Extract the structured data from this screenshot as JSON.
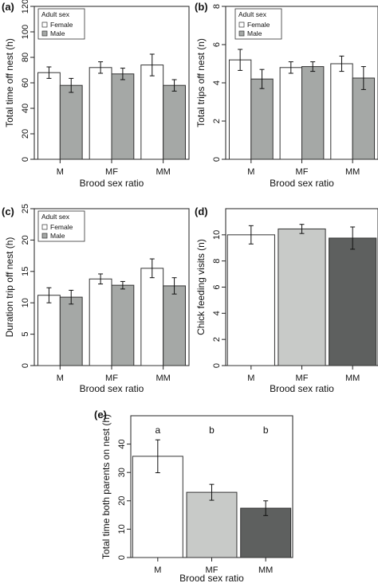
{
  "colors": {
    "female": "#ffffff",
    "male": "#a5a8a6",
    "mf": "#c8cac8",
    "mm": "#5e605f",
    "stroke": "#222222"
  },
  "chart_data": [
    {
      "type": "bar",
      "panel_label": "(a)",
      "categories": [
        "M",
        "MF",
        "MM"
      ],
      "series": [
        {
          "name": "Female",
          "values": [
            68,
            72,
            74
          ],
          "err": [
            4.5,
            4.5,
            8.5
          ]
        },
        {
          "name": "Male",
          "values": [
            58,
            67,
            58
          ],
          "err": [
            5.5,
            4.5,
            4.5
          ]
        }
      ],
      "ylabel": "Total time off nest (h)",
      "xlabel": "Brood sex ratio",
      "ylim": [
        0,
        120
      ],
      "yticks": [
        0,
        20,
        40,
        60,
        80,
        100,
        120
      ],
      "legend": {
        "title": "Adult sex",
        "entries": [
          "Female",
          "Male"
        ],
        "position": "top-left"
      }
    },
    {
      "type": "bar",
      "panel_label": "(b)",
      "categories": [
        "M",
        "MF",
        "MM"
      ],
      "series": [
        {
          "name": "Female",
          "values": [
            5.2,
            4.8,
            5.0
          ],
          "err": [
            0.55,
            0.3,
            0.4
          ]
        },
        {
          "name": "Male",
          "values": [
            4.2,
            4.85,
            4.25
          ],
          "err": [
            0.5,
            0.25,
            0.6
          ]
        }
      ],
      "ylabel": "Total trips off nest (n)",
      "xlabel": "Brood sex ratio",
      "ylim": [
        0,
        8
      ],
      "yticks": [
        0,
        2,
        4,
        6,
        8
      ],
      "legend": {
        "title": "Adult sex",
        "entries": [
          "Female",
          "Male"
        ],
        "position": "top-left"
      }
    },
    {
      "type": "bar",
      "panel_label": "(c)",
      "categories": [
        "M",
        "MF",
        "MM"
      ],
      "series": [
        {
          "name": "Female",
          "values": [
            11.2,
            13.8,
            15.5
          ],
          "err": [
            1.2,
            0.8,
            1.5
          ]
        },
        {
          "name": "Male",
          "values": [
            10.9,
            12.8,
            12.7
          ],
          "err": [
            1.1,
            0.6,
            1.3
          ]
        }
      ],
      "ylabel": "Duration trip off nest (h)",
      "xlabel": "Brood sex ratio",
      "ylim": [
        0,
        25
      ],
      "yticks": [
        0,
        5,
        10,
        15,
        20,
        25
      ],
      "legend": {
        "title": "Adult sex",
        "entries": [
          "Female",
          "Male"
        ],
        "position": "top-left"
      }
    },
    {
      "type": "bar",
      "panel_label": "(d)",
      "categories": [
        "M",
        "MF",
        "MM"
      ],
      "series": [
        {
          "values": [
            10.0,
            10.45,
            9.75
          ],
          "err": [
            0.7,
            0.35,
            0.85
          ]
        }
      ],
      "ylabel": "Chick feeding visits (n)",
      "xlabel": "Brood sex ratio",
      "ylim": [
        0,
        12
      ],
      "yticks": [
        0,
        2,
        4,
        6,
        8,
        10
      ]
    },
    {
      "type": "bar",
      "panel_label": "(e)",
      "categories": [
        "M",
        "MF",
        "MM"
      ],
      "series": [
        {
          "values": [
            35.7,
            23.0,
            17.4
          ],
          "err": [
            5.8,
            2.8,
            2.6
          ]
        }
      ],
      "annotations": [
        "a",
        "b",
        "b"
      ],
      "ylabel": "Total time both parents on nest (h)",
      "xlabel": "Brood sex ratio",
      "ylim": [
        0,
        50
      ],
      "yticks": [
        0,
        10,
        20,
        30,
        40
      ]
    }
  ]
}
